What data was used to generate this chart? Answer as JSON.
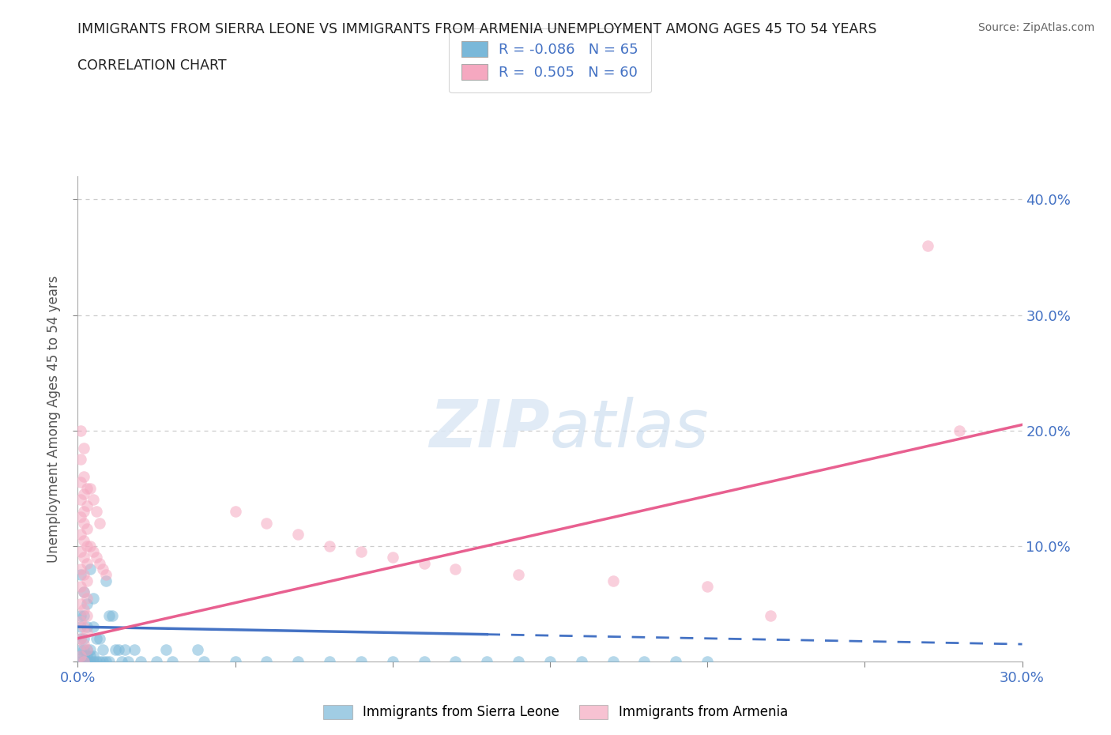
{
  "title_line1": "IMMIGRANTS FROM SIERRA LEONE VS IMMIGRANTS FROM ARMENIA UNEMPLOYMENT AMONG AGES 45 TO 54 YEARS",
  "title_line2": "CORRELATION CHART",
  "source": "Source: ZipAtlas.com",
  "ylabel": "Unemployment Among Ages 45 to 54 years",
  "xlim": [
    0.0,
    0.3
  ],
  "ylim": [
    0.0,
    0.42
  ],
  "xticks": [
    0.0,
    0.05,
    0.1,
    0.15,
    0.2,
    0.25,
    0.3
  ],
  "yticks": [
    0.0,
    0.1,
    0.2,
    0.3,
    0.4
  ],
  "ytick_labels": [
    "",
    "10.0%",
    "20.0%",
    "30.0%",
    "40.0%"
  ],
  "xtick_labels": [
    "0.0%",
    "",
    "",
    "",
    "",
    "",
    "30.0%"
  ],
  "legend_R_label1": "R = -0.086   N = 65",
  "legend_R_label2": "R =  0.505   N = 60",
  "legend_label1": "Immigrants from Sierra Leone",
  "legend_label2": "Immigrants from Armenia",
  "sl_color": "#7ab8d9",
  "ar_color": "#f5a8c0",
  "sl_line_color": "#4472c4",
  "ar_line_color": "#e86090",
  "grid_color": "#cccccc",
  "sl_R": -0.086,
  "ar_R": 0.505,
  "sierra_leone_points": [
    [
      0.001,
      0.075
    ],
    [
      0.002,
      0.06
    ],
    [
      0.003,
      0.05
    ],
    [
      0.002,
      0.04
    ],
    [
      0.001,
      0.04
    ],
    [
      0.003,
      0.03
    ],
    [
      0.001,
      0.03
    ],
    [
      0.002,
      0.02
    ],
    [
      0.001,
      0.02
    ],
    [
      0.001,
      0.01
    ],
    [
      0.002,
      0.01
    ],
    [
      0.003,
      0.01
    ],
    [
      0.004,
      0.01
    ],
    [
      0.001,
      0.005
    ],
    [
      0.002,
      0.005
    ],
    [
      0.003,
      0.005
    ],
    [
      0.004,
      0.005
    ],
    [
      0.005,
      0.005
    ],
    [
      0.001,
      0.0
    ],
    [
      0.002,
      0.0
    ],
    [
      0.003,
      0.0
    ],
    [
      0.004,
      0.0
    ],
    [
      0.005,
      0.0
    ],
    [
      0.006,
      0.0
    ],
    [
      0.007,
      0.0
    ],
    [
      0.008,
      0.0
    ],
    [
      0.009,
      0.0
    ],
    [
      0.01,
      0.0
    ],
    [
      0.005,
      0.03
    ],
    [
      0.006,
      0.02
    ],
    [
      0.007,
      0.02
    ],
    [
      0.008,
      0.01
    ],
    [
      0.009,
      0.07
    ],
    [
      0.01,
      0.04
    ],
    [
      0.011,
      0.04
    ],
    [
      0.012,
      0.01
    ],
    [
      0.013,
      0.01
    ],
    [
      0.014,
      0.0
    ],
    [
      0.015,
      0.01
    ],
    [
      0.016,
      0.0
    ],
    [
      0.02,
      0.0
    ],
    [
      0.025,
      0.0
    ],
    [
      0.03,
      0.0
    ],
    [
      0.04,
      0.0
    ],
    [
      0.05,
      0.0
    ],
    [
      0.06,
      0.0
    ],
    [
      0.07,
      0.0
    ],
    [
      0.08,
      0.0
    ],
    [
      0.09,
      0.0
    ],
    [
      0.1,
      0.0
    ],
    [
      0.11,
      0.0
    ],
    [
      0.12,
      0.0
    ],
    [
      0.13,
      0.0
    ],
    [
      0.14,
      0.0
    ],
    [
      0.15,
      0.0
    ],
    [
      0.16,
      0.0
    ],
    [
      0.17,
      0.0
    ],
    [
      0.18,
      0.0
    ],
    [
      0.19,
      0.0
    ],
    [
      0.2,
      0.0
    ],
    [
      0.038,
      0.01
    ],
    [
      0.028,
      0.01
    ],
    [
      0.018,
      0.01
    ],
    [
      0.005,
      0.055
    ],
    [
      0.004,
      0.08
    ]
  ],
  "armenia_points": [
    [
      0.001,
      0.2
    ],
    [
      0.002,
      0.185
    ],
    [
      0.001,
      0.175
    ],
    [
      0.002,
      0.16
    ],
    [
      0.001,
      0.155
    ],
    [
      0.003,
      0.15
    ],
    [
      0.002,
      0.145
    ],
    [
      0.001,
      0.14
    ],
    [
      0.003,
      0.135
    ],
    [
      0.002,
      0.13
    ],
    [
      0.001,
      0.125
    ],
    [
      0.002,
      0.12
    ],
    [
      0.003,
      0.115
    ],
    [
      0.001,
      0.11
    ],
    [
      0.002,
      0.105
    ],
    [
      0.003,
      0.1
    ],
    [
      0.001,
      0.095
    ],
    [
      0.002,
      0.09
    ],
    [
      0.003,
      0.085
    ],
    [
      0.001,
      0.08
    ],
    [
      0.002,
      0.075
    ],
    [
      0.003,
      0.07
    ],
    [
      0.001,
      0.065
    ],
    [
      0.002,
      0.06
    ],
    [
      0.003,
      0.055
    ],
    [
      0.001,
      0.05
    ],
    [
      0.002,
      0.045
    ],
    [
      0.003,
      0.04
    ],
    [
      0.001,
      0.035
    ],
    [
      0.002,
      0.03
    ],
    [
      0.003,
      0.025
    ],
    [
      0.001,
      0.02
    ],
    [
      0.002,
      0.015
    ],
    [
      0.003,
      0.01
    ],
    [
      0.001,
      0.005
    ],
    [
      0.002,
      0.0
    ],
    [
      0.004,
      0.15
    ],
    [
      0.005,
      0.14
    ],
    [
      0.006,
      0.13
    ],
    [
      0.007,
      0.12
    ],
    [
      0.004,
      0.1
    ],
    [
      0.005,
      0.095
    ],
    [
      0.006,
      0.09
    ],
    [
      0.007,
      0.085
    ],
    [
      0.008,
      0.08
    ],
    [
      0.009,
      0.075
    ],
    [
      0.05,
      0.13
    ],
    [
      0.06,
      0.12
    ],
    [
      0.07,
      0.11
    ],
    [
      0.08,
      0.1
    ],
    [
      0.09,
      0.095
    ],
    [
      0.1,
      0.09
    ],
    [
      0.11,
      0.085
    ],
    [
      0.12,
      0.08
    ],
    [
      0.14,
      0.075
    ],
    [
      0.17,
      0.07
    ],
    [
      0.2,
      0.065
    ],
    [
      0.22,
      0.04
    ],
    [
      0.27,
      0.36
    ],
    [
      0.28,
      0.2
    ]
  ]
}
